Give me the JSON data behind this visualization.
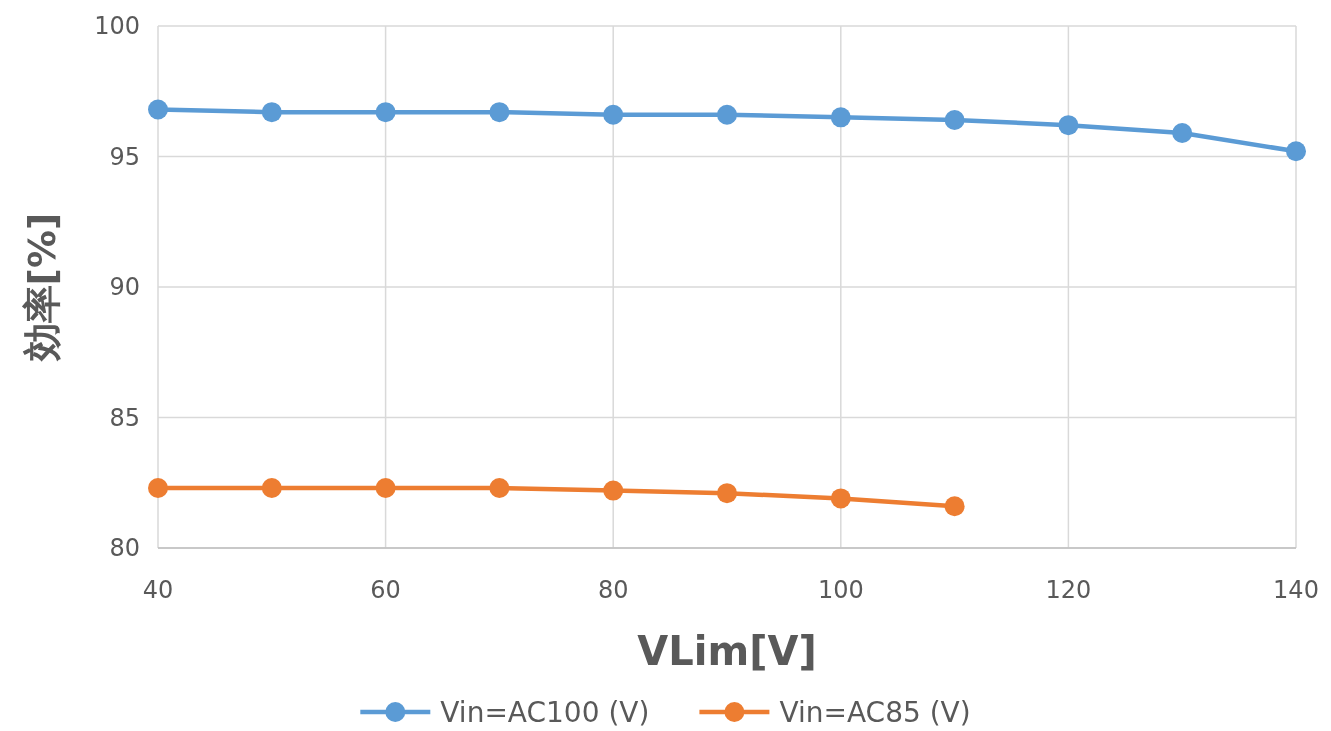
{
  "chart_data": {
    "type": "line",
    "xlabel": "VLim[V]",
    "ylabel": "効率[%]",
    "x": [
      40,
      50,
      60,
      70,
      80,
      90,
      100,
      110,
      120,
      130,
      140
    ],
    "series": [
      {
        "name": "Vin=AC100 (V)",
        "color": "#5b9bd5",
        "values": [
          96.8,
          96.7,
          96.7,
          96.7,
          96.6,
          96.6,
          96.5,
          96.4,
          96.2,
          95.9,
          95.2
        ]
      },
      {
        "name": "Vin=AC85 (V)",
        "color": "#ed7d31",
        "values": [
          82.3,
          82.3,
          82.3,
          82.3,
          82.2,
          82.1,
          81.9,
          81.6,
          null,
          null,
          null
        ]
      }
    ],
    "xlim": [
      40,
      140
    ],
    "xticks": [
      40,
      60,
      80,
      100,
      120,
      140
    ],
    "ylim": [
      80,
      100
    ],
    "yticks": [
      80,
      85,
      90,
      95,
      100
    ],
    "grid": true,
    "legend": "bottom",
    "marker": "circle"
  }
}
